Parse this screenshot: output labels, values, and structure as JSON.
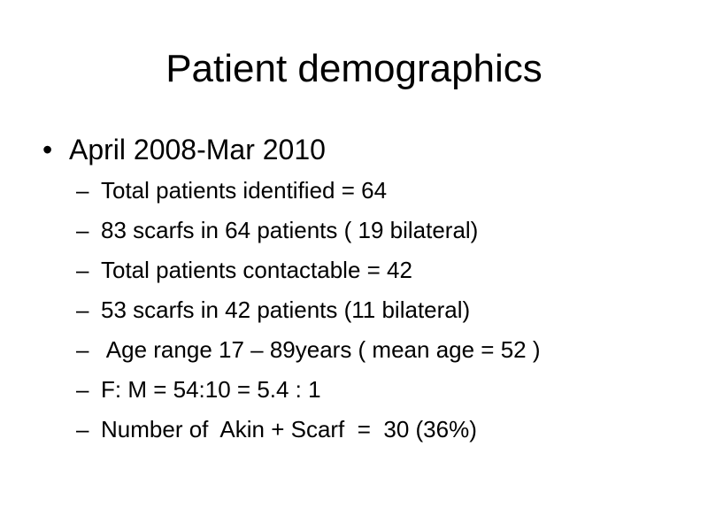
{
  "title": "Patient demographics",
  "bullets": [
    {
      "text": "April 2008-Mar 2010",
      "items": [
        "Total patients identified = 64",
        "83 scarfs in 64 patients ( 19 bilateral)",
        "Total patients contactable = 42",
        "53 scarfs in 42 patients (11 bilateral)",
        " Age range 17 – 89years ( mean age = 52 )",
        "F: M = 54:10 = 5.4 : 1",
        "Number of  Akin + Scarf  =  30 (36%)"
      ]
    }
  ]
}
